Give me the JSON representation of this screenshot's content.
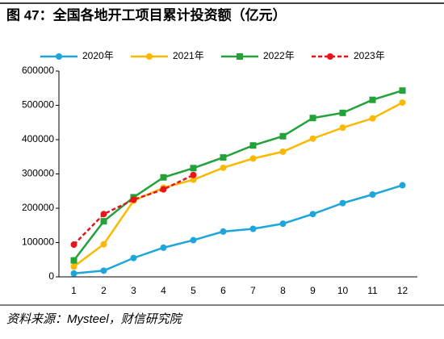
{
  "chart_data": {
    "type": "line",
    "title": "图 47：全国各地开工项目累计投资额（亿元）",
    "source": "资料来源：Mysteel，财信研究院",
    "categories": [
      "1",
      "2",
      "3",
      "4",
      "5",
      "6",
      "7",
      "8",
      "9",
      "10",
      "11",
      "12"
    ],
    "series": [
      {
        "name": "2020年",
        "color": "#1ea5dc",
        "marker": "circle",
        "dashed": false,
        "values": [
          10000,
          18000,
          55000,
          85000,
          107000,
          132000,
          140000,
          155000,
          183000,
          215000,
          240000,
          267000
        ]
      },
      {
        "name": "2021年",
        "color": "#fbb800",
        "marker": "circle",
        "dashed": false,
        "values": [
          30000,
          95000,
          222000,
          260000,
          283000,
          318000,
          345000,
          365000,
          403000,
          435000,
          462000,
          508000
        ]
      },
      {
        "name": "2022年",
        "color": "#23a23a",
        "marker": "square",
        "dashed": false,
        "values": [
          48000,
          162000,
          232000,
          290000,
          317000,
          348000,
          383000,
          410000,
          463000,
          478000,
          516000,
          543000
        ]
      },
      {
        "name": "2023年",
        "color": "#e8141a",
        "marker": "circle",
        "dashed": true,
        "values": [
          94000,
          183000,
          225000,
          255000,
          297000,
          null,
          null,
          null,
          null,
          null,
          null,
          null
        ]
      }
    ],
    "ylim": [
      0,
      600000
    ],
    "yticks": [
      0,
      100000,
      200000,
      300000,
      400000,
      500000,
      600000
    ],
    "grid": false,
    "legend": "top"
  }
}
